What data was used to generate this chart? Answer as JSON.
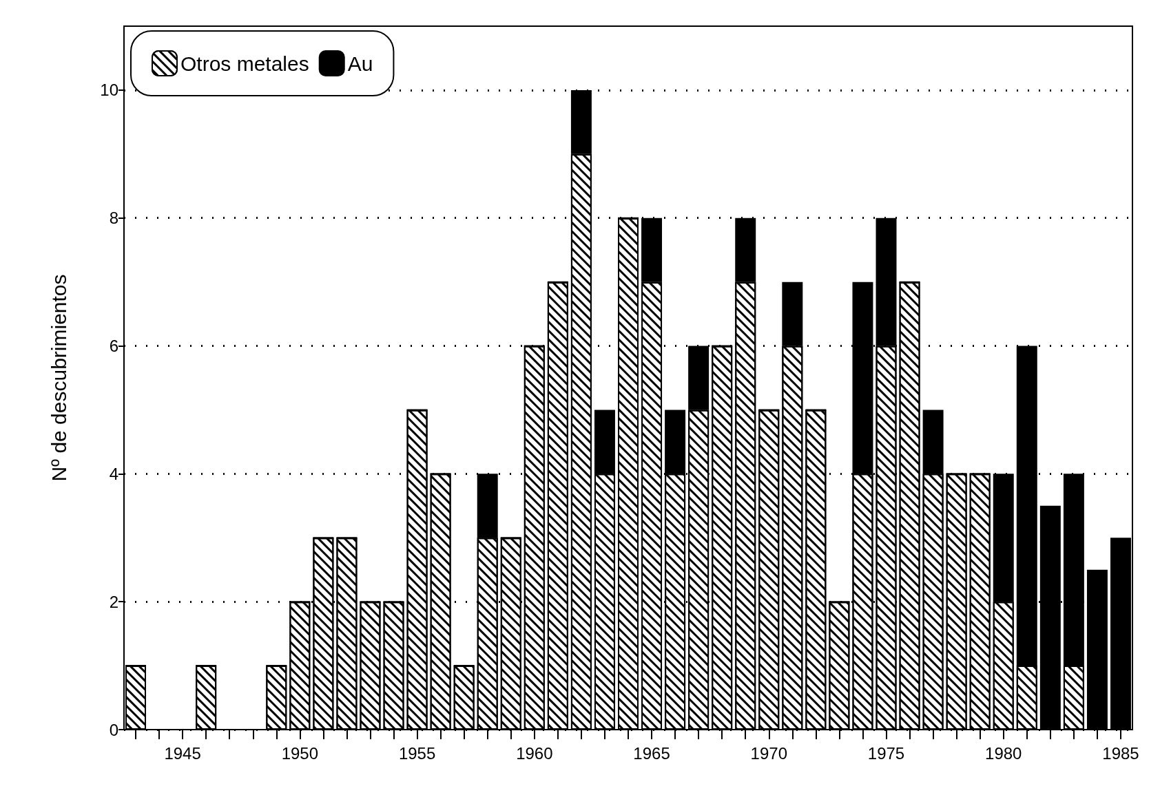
{
  "chart_data": {
    "type": "bar",
    "stacked": true,
    "ylabel": "Nº de descubrimientos",
    "categories": [
      null,
      null,
      "1945",
      null,
      null,
      null,
      null,
      "1950",
      null,
      null,
      null,
      null,
      "1955",
      null,
      null,
      null,
      null,
      "1960",
      null,
      null,
      null,
      null,
      "1965",
      null,
      null,
      null,
      null,
      "1970",
      null,
      null,
      null,
      null,
      "1975",
      null,
      null,
      null,
      null,
      "1980",
      null,
      null,
      null,
      null,
      "1985"
    ],
    "series": [
      {
        "name": "Otros metales",
        "color": "#ffffff",
        "values": [
          1,
          0,
          0,
          1,
          0,
          0,
          1,
          2,
          3,
          3,
          2,
          2,
          5,
          4,
          1,
          3,
          3,
          6,
          7,
          9,
          4,
          8,
          7,
          4,
          5,
          6,
          7,
          5,
          6,
          5,
          2,
          4,
          6,
          7,
          4,
          4,
          4,
          2,
          1,
          0,
          1,
          0,
          0
        ]
      },
      {
        "name": "Au",
        "color": "#000000",
        "values": [
          0,
          0,
          0,
          0,
          0,
          0,
          0,
          0,
          0,
          0,
          0,
          0,
          0,
          0,
          0,
          1,
          0,
          0,
          0,
          1,
          1,
          0,
          1,
          1,
          1,
          0,
          1,
          0,
          1,
          0,
          0,
          3,
          2,
          0,
          1,
          0,
          0,
          2,
          5,
          3.5,
          3,
          2.5,
          3
        ]
      }
    ],
    "ylim": [
      0,
      11
    ],
    "yticks": [
      0,
      2,
      4,
      6,
      8,
      10
    ],
    "grid": "y",
    "legend": "top left"
  }
}
